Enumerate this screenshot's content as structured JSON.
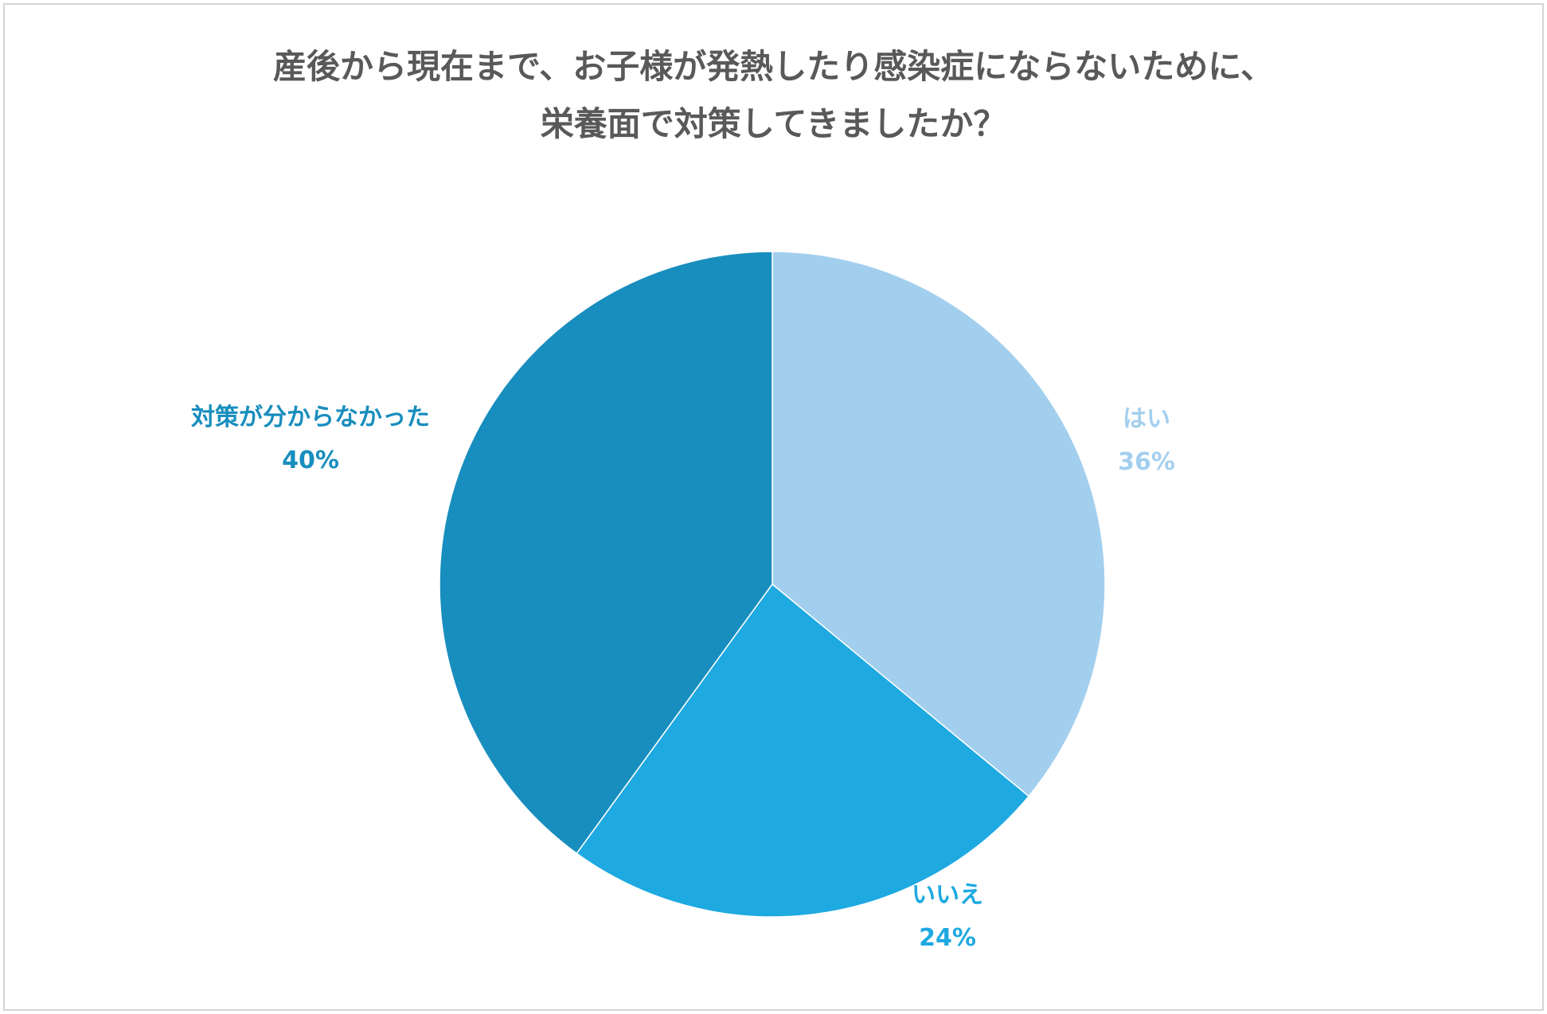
{
  "chart_data": {
    "type": "pie",
    "title": "産後から現在まで、お子様が発熱したり感染症にならないために、\n栄養面で対策してきましたか？",
    "title_lines": [
      "産後から現在まで、お子様が発熱したり感染症にならないために、",
      "栄養面で対策してきましたか？"
    ],
    "categories": [
      "はい",
      "いいえ",
      "対策が分からなかった"
    ],
    "values": [
      36,
      24,
      40
    ],
    "value_labels": [
      "36%",
      "24%",
      "40%"
    ],
    "colors": [
      "#a3cfee",
      "#1ea9e1",
      "#188ebe"
    ],
    "start_angle": "12 o'clock",
    "direction": "clockwise",
    "legend": "none",
    "data_labels": "outside"
  }
}
